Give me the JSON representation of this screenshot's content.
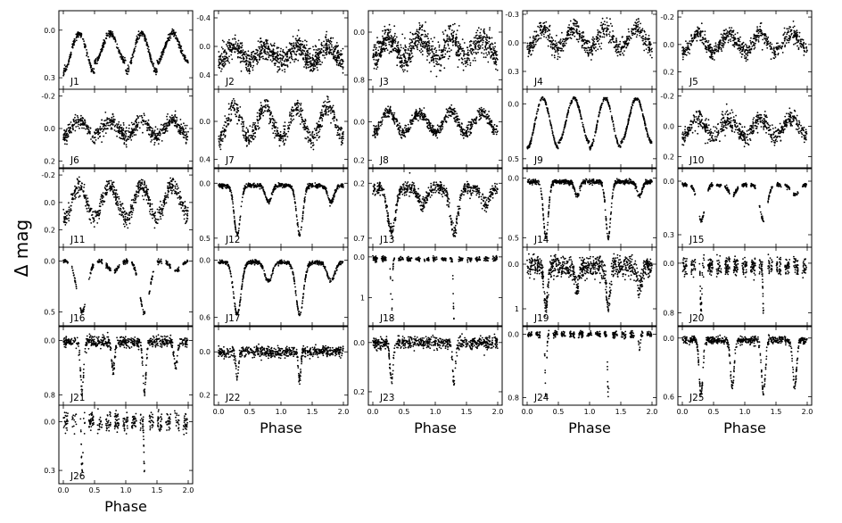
{
  "figure": {
    "ylabel": "Δ mag",
    "xlabel": "Phase",
    "x_ticks": [
      "0.0",
      "0.5",
      "1.0",
      "1.5",
      "2.0"
    ]
  },
  "chart_data": {
    "type": "scatter",
    "xlim": [
      0.0,
      2.0
    ],
    "ylabel": "Δ mag",
    "xlabel": "Phase",
    "y_axis_inverted": true,
    "panels": [
      {
        "label": "J1",
        "col": 0,
        "row": 0,
        "yticks": [
          0.0,
          0.3
        ],
        "ylim": [
          -0.1,
          0.35
        ],
        "kind": "ew",
        "base": 0.02,
        "depth1": 0.24,
        "depth2": 0.18,
        "width": 0.14,
        "noise": 0.01
      },
      {
        "label": "J2",
        "col": 1,
        "row": 0,
        "yticks": [
          -0.4,
          0.0,
          0.4
        ],
        "ylim": [
          -0.45,
          0.55
        ],
        "kind": "ew",
        "base": 0.0,
        "depth1": 0.22,
        "depth2": 0.2,
        "width": 0.15,
        "noise": 0.08
      },
      {
        "label": "J3",
        "col": 2,
        "row": 0,
        "yticks": [
          0.0,
          0.8
        ],
        "ylim": [
          -0.3,
          0.9
        ],
        "kind": "ew",
        "base": 0.1,
        "depth1": 0.35,
        "depth2": 0.3,
        "width": 0.15,
        "noise": 0.12
      },
      {
        "label": "J4",
        "col": 3,
        "row": 0,
        "yticks": [
          -0.3,
          0.0,
          0.3
        ],
        "ylim": [
          -0.3,
          0.45
        ],
        "kind": "ew",
        "base": -0.15,
        "depth1": 0.22,
        "depth2": 0.2,
        "width": 0.15,
        "noise": 0.05
      },
      {
        "label": "J5",
        "col": 4,
        "row": 0,
        "yticks": [
          -0.2,
          0.0,
          0.2
        ],
        "ylim": [
          -0.22,
          0.3
        ],
        "kind": "ew",
        "base": -0.08,
        "depth1": 0.14,
        "depth2": 0.12,
        "width": 0.15,
        "noise": 0.03
      },
      {
        "label": "J6",
        "col": 0,
        "row": 1,
        "yticks": [
          -0.2,
          0.0,
          0.2
        ],
        "ylim": [
          -0.22,
          0.22
        ],
        "kind": "ew",
        "base": -0.05,
        "depth1": 0.1,
        "depth2": 0.09,
        "width": 0.15,
        "noise": 0.025
      },
      {
        "label": "J7",
        "col": 1,
        "row": 1,
        "yticks": [
          0.0,
          0.4
        ],
        "ylim": [
          -0.3,
          0.45
        ],
        "kind": "ew",
        "base": -0.15,
        "depth1": 0.35,
        "depth2": 0.32,
        "width": 0.15,
        "noise": 0.05
      },
      {
        "label": "J8",
        "col": 2,
        "row": 1,
        "yticks": [
          0.0,
          0.2
        ],
        "ylim": [
          -0.15,
          0.22
        ],
        "kind": "ew",
        "base": -0.05,
        "depth1": 0.11,
        "depth2": 0.1,
        "width": 0.15,
        "noise": 0.015
      },
      {
        "label": "J9",
        "col": 3,
        "row": 1,
        "yticks": [
          0.0,
          0.5
        ],
        "ylim": [
          -0.1,
          0.55
        ],
        "kind": "ew",
        "base": -0.05,
        "depth1": 0.45,
        "depth2": 0.4,
        "width": 0.13,
        "noise": 0.008
      },
      {
        "label": "J10",
        "col": 4,
        "row": 1,
        "yticks": [
          -0.2,
          0.0,
          0.2
        ],
        "ylim": [
          -0.22,
          0.25
        ],
        "kind": "ew",
        "base": -0.05,
        "depth1": 0.12,
        "depth2": 0.11,
        "width": 0.15,
        "noise": 0.03
      },
      {
        "label": "J11",
        "col": 0,
        "row": 2,
        "yticks": [
          -0.2,
          0.0,
          0.2
        ],
        "ylim": [
          -0.22,
          0.3
        ],
        "kind": "ew",
        "base": -0.12,
        "depth1": 0.24,
        "depth2": 0.22,
        "width": 0.15,
        "noise": 0.03
      },
      {
        "label": "J12",
        "col": 1,
        "row": 2,
        "yticks": [
          0.0,
          0.5
        ],
        "ylim": [
          -0.1,
          0.55
        ],
        "kind": "ea",
        "base": 0.02,
        "depth1": 0.45,
        "depth2": 0.15,
        "width": 0.05,
        "noise": 0.01
      },
      {
        "label": "J13",
        "col": 2,
        "row": 2,
        "yticks": [
          0.2,
          0.7
        ],
        "ylim": [
          0.1,
          0.75
        ],
        "kind": "ea",
        "base": 0.25,
        "depth1": 0.4,
        "depth2": 0.15,
        "width": 0.06,
        "noise": 0.03
      },
      {
        "label": "J14",
        "col": 3,
        "row": 2,
        "yticks": [
          0.0,
          0.5
        ],
        "ylim": [
          -0.05,
          0.55
        ],
        "kind": "ea",
        "base": 0.03,
        "depth1": 0.47,
        "depth2": 0.12,
        "width": 0.04,
        "noise": 0.01
      },
      {
        "label": "J15",
        "col": 4,
        "row": 2,
        "yticks": [
          0.0,
          0.3
        ],
        "ylim": [
          -0.05,
          0.35
        ],
        "kind": "ea",
        "base": 0.02,
        "depth1": 0.2,
        "depth2": 0.06,
        "width": 0.06,
        "noise": 0.005,
        "gaps": true
      },
      {
        "label": "J16",
        "col": 0,
        "row": 3,
        "yticks": [
          0.0,
          0.5
        ],
        "ylim": [
          -0.1,
          0.6
        ],
        "kind": "ea",
        "base": 0.0,
        "depth1": 0.5,
        "depth2": 0.1,
        "width": 0.08,
        "noise": 0.01,
        "gaps": true
      },
      {
        "label": "J17",
        "col": 1,
        "row": 3,
        "yticks": [
          0.0,
          0.6
        ],
        "ylim": [
          -0.1,
          0.65
        ],
        "kind": "ea",
        "base": 0.02,
        "depth1": 0.55,
        "depth2": 0.2,
        "width": 0.06,
        "noise": 0.01
      },
      {
        "label": "J18",
        "col": 2,
        "row": 3,
        "yticks": [
          0,
          1
        ],
        "ylim": [
          -0.15,
          1.6
        ],
        "kind": "ea",
        "base": 0.05,
        "depth1": 1.45,
        "depth2": 0.0,
        "width": 0.012,
        "noise": 0.03,
        "gaps": true
      },
      {
        "label": "J19",
        "col": 3,
        "row": 3,
        "yticks": [
          0,
          1
        ],
        "ylim": [
          -0.3,
          1.3
        ],
        "kind": "ea",
        "base": 0.05,
        "depth1": 0.9,
        "depth2": 0.5,
        "width": 0.03,
        "noise": 0.12
      },
      {
        "label": "J20",
        "col": 4,
        "row": 3,
        "yticks": [
          0.0,
          0.8
        ],
        "ylim": [
          -0.2,
          0.95
        ],
        "kind": "ea",
        "base": 0.05,
        "depth1": 0.75,
        "depth2": 0.0,
        "width": 0.01,
        "noise": 0.07,
        "gaps": true
      },
      {
        "label": "J21",
        "col": 0,
        "row": 4,
        "yticks": [
          0.0,
          0.8
        ],
        "ylim": [
          -0.15,
          0.9
        ],
        "kind": "ea",
        "base": 0.02,
        "depth1": 0.72,
        "depth2": 0.4,
        "width": 0.025,
        "noise": 0.04
      },
      {
        "label": "J22",
        "col": 1,
        "row": 4,
        "yticks": [
          0.0,
          0.2
        ],
        "ylim": [
          -0.1,
          0.23
        ],
        "kind": "ea",
        "base": 0.0,
        "depth1": 0.13,
        "depth2": 0.0,
        "width": 0.02,
        "noise": 0.012
      },
      {
        "label": "J23",
        "col": 2,
        "row": 4,
        "yticks": [
          0.0,
          0.2
        ],
        "ylim": [
          -0.05,
          0.24
        ],
        "kind": "ea",
        "base": 0.0,
        "depth1": 0.16,
        "depth2": 0.0,
        "width": 0.025,
        "noise": 0.012
      },
      {
        "label": "J24",
        "col": 3,
        "row": 4,
        "yticks": [
          0.0,
          0.8
        ],
        "ylim": [
          -0.05,
          0.85
        ],
        "kind": "ea",
        "base": 0.0,
        "depth1": 0.8,
        "depth2": 0.2,
        "width": 0.012,
        "noise": 0.02,
        "gaps": true
      },
      {
        "label": "J25",
        "col": 4,
        "row": 4,
        "yticks": [
          0.0,
          0.6
        ],
        "ylim": [
          -0.08,
          0.65
        ],
        "kind": "ea",
        "base": 0.02,
        "depth1": 0.55,
        "depth2": 0.48,
        "width": 0.03,
        "noise": 0.02
      },
      {
        "label": "J26",
        "col": 0,
        "row": 5,
        "yticks": [
          0.0,
          0.3
        ],
        "ylim": [
          -0.08,
          0.36
        ],
        "kind": "ea",
        "base": 0.0,
        "depth1": 0.32,
        "depth2": 0.0,
        "width": 0.01,
        "noise": 0.03,
        "gaps": true
      }
    ]
  }
}
